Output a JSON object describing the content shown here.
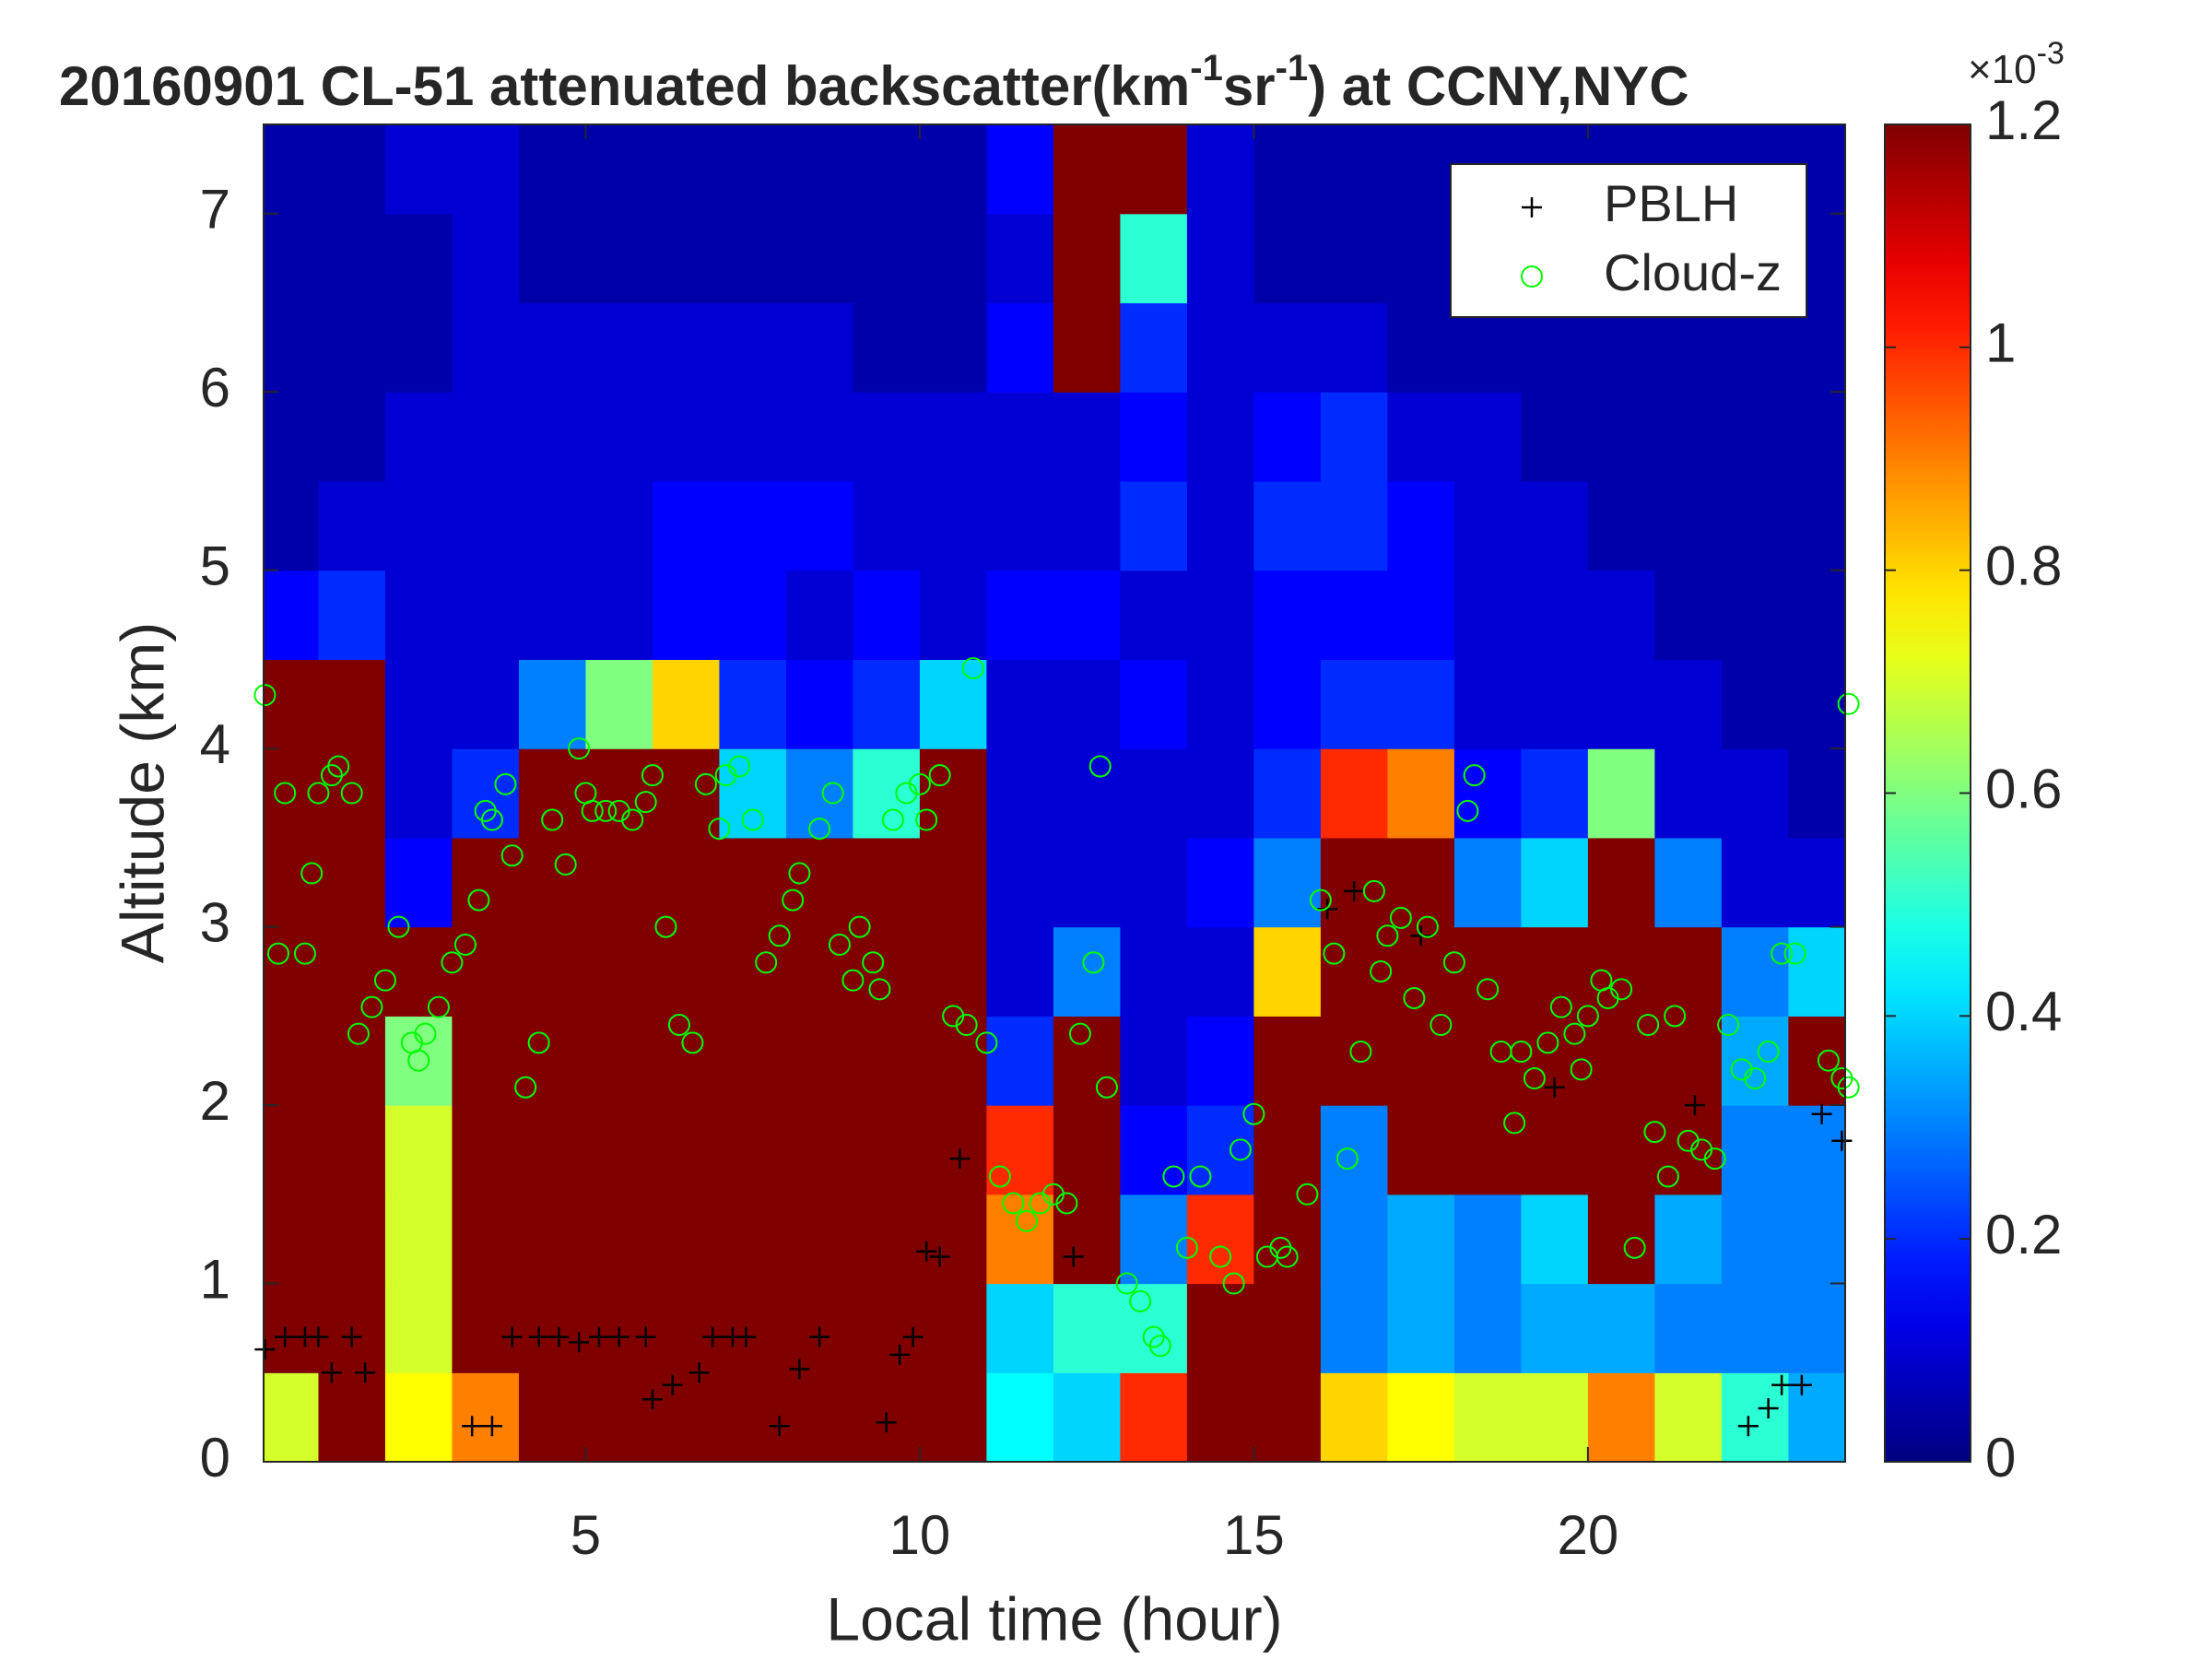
{
  "chart_data": {
    "type": "heatmap",
    "title": [
      "20160901  CL-51 attenuated backscatter(km",
      "-1",
      "sr",
      "-1",
      ") at CCNY,NYC"
    ],
    "xlabel": "Local time (hour)",
    "ylabel": "Altitude (km)",
    "xlim": [
      0.18,
      23.85
    ],
    "ylim": [
      0,
      7.5
    ],
    "xticks": [
      5,
      10,
      15,
      20
    ],
    "yticks": [
      0,
      1,
      2,
      3,
      4,
      5,
      6,
      7
    ],
    "colormap": "jet",
    "clim": [
      0,
      1.2
    ],
    "cticks": [
      0,
      0.2,
      0.4,
      0.6,
      0.8,
      1,
      1.2
    ],
    "cexponent": [
      "×10",
      "-3"
    ],
    "legend": "upper right",
    "heatmap": {
      "x": [
        0.5,
        1.5,
        2.5,
        3.5,
        4.5,
        5.5,
        6.5,
        7.5,
        8.5,
        9.5,
        10.5,
        11.5,
        12.5,
        13.5,
        14.5,
        15.5,
        16.5,
        17.5,
        18.5,
        19.5,
        20.5,
        21.5,
        22.5,
        23.5
      ],
      "y": [
        0.25,
        0.75,
        1.25,
        1.75,
        2.25,
        2.75,
        3.25,
        3.75,
        4.25,
        4.75,
        5.25,
        5.75,
        6.25,
        6.75,
        7.25
      ],
      "values": [
        [
          0.7,
          1.2,
          1.2,
          1.2,
          1.2,
          1.2,
          1.2,
          1.2,
          1.2,
          0.15,
          0.05,
          0.05,
          0.05,
          0.05,
          0.05
        ],
        [
          1.2,
          1.2,
          1.2,
          1.2,
          1.2,
          1.2,
          1.2,
          1.2,
          1.2,
          0.2,
          0.1,
          0.05,
          0.05,
          0.05,
          0.05
        ],
        [
          0.75,
          0.7,
          0.7,
          0.7,
          0.6,
          1.2,
          0.15,
          0.1,
          0.1,
          0.1,
          0.1,
          0.1,
          0.05,
          0.05,
          0.1
        ],
        [
          0.9,
          1.2,
          1.2,
          1.2,
          1.2,
          1.2,
          1.2,
          0.2,
          0.1,
          0.1,
          0.1,
          0.1,
          0.1,
          0.1,
          0.1
        ],
        [
          1.2,
          1.2,
          1.2,
          1.2,
          1.2,
          1.2,
          1.2,
          1.2,
          0.3,
          0.1,
          0.1,
          0.1,
          0.1,
          0.05,
          0.05
        ],
        [
          1.2,
          1.2,
          1.2,
          1.2,
          1.2,
          1.2,
          1.2,
          1.2,
          0.6,
          0.1,
          0.1,
          0.1,
          0.1,
          0.05,
          0.05
        ],
        [
          1.2,
          1.2,
          1.2,
          1.2,
          1.2,
          1.2,
          1.2,
          1.2,
          0.8,
          0.15,
          0.15,
          0.1,
          0.1,
          0.05,
          0.05
        ],
        [
          1.2,
          1.2,
          1.2,
          1.2,
          1.2,
          1.2,
          1.2,
          0.4,
          0.2,
          0.15,
          0.15,
          0.1,
          0.1,
          0.05,
          0.05
        ],
        [
          1.2,
          1.2,
          1.2,
          1.2,
          1.2,
          1.2,
          1.2,
          0.3,
          0.15,
          0.1,
          0.15,
          0.1,
          0.1,
          0.05,
          0.05
        ],
        [
          1.2,
          1.2,
          1.2,
          1.2,
          1.2,
          1.2,
          1.2,
          0.5,
          0.2,
          0.15,
          0.1,
          0.1,
          0.05,
          0.05,
          0.05
        ],
        [
          1.2,
          1.2,
          1.2,
          1.2,
          1.2,
          1.2,
          1.2,
          1.2,
          0.4,
          0.1,
          0.1,
          0.1,
          0.05,
          0.05,
          0.05
        ],
        [
          0.45,
          0.4,
          0.9,
          1.0,
          0.2,
          0.1,
          0.1,
          0.1,
          0.1,
          0.15,
          0.1,
          0.1,
          0.15,
          0.1,
          0.15
        ],
        [
          0.4,
          0.5,
          1.2,
          1.2,
          1.2,
          0.3,
          0.1,
          0.1,
          0.1,
          0.15,
          0.1,
          0.1,
          1.2,
          1.2,
          1.2
        ],
        [
          1.0,
          0.5,
          0.3,
          0.15,
          0.1,
          0.1,
          0.1,
          0.1,
          0.15,
          0.1,
          0.2,
          0.15,
          0.2,
          0.5,
          1.2
        ],
        [
          1.2,
          1.2,
          1.0,
          0.2,
          0.15,
          0.1,
          0.15,
          0.1,
          0.1,
          0.1,
          0.1,
          0.1,
          0.1,
          0.1,
          0.1
        ],
        [
          1.2,
          1.2,
          1.2,
          1.2,
          1.2,
          0.8,
          0.3,
          0.2,
          0.15,
          0.15,
          0.2,
          0.15,
          0.1,
          0.05,
          0.05
        ],
        [
          0.8,
          0.3,
          0.3,
          0.3,
          1.2,
          1.2,
          1.2,
          1.0,
          0.2,
          0.15,
          0.2,
          0.2,
          0.1,
          0.05,
          0.05
        ],
        [
          0.75,
          0.35,
          0.35,
          1.2,
          1.2,
          1.2,
          1.2,
          0.9,
          0.2,
          0.15,
          0.15,
          0.1,
          0.05,
          0.05,
          0.05
        ],
        [
          0.7,
          0.3,
          0.3,
          1.2,
          1.2,
          1.2,
          0.3,
          0.15,
          0.1,
          0.1,
          0.1,
          0.1,
          0.05,
          0.05,
          0.05
        ],
        [
          0.7,
          0.35,
          0.4,
          1.2,
          1.2,
          1.2,
          0.4,
          0.2,
          0.1,
          0.1,
          0.1,
          0.05,
          0.05,
          0.05,
          0.05
        ],
        [
          0.9,
          0.35,
          1.2,
          1.2,
          1.2,
          1.2,
          1.2,
          0.6,
          0.1,
          0.1,
          0.05,
          0.05,
          0.05,
          0.05,
          0.05
        ],
        [
          0.7,
          0.3,
          0.35,
          1.2,
          1.2,
          1.2,
          0.3,
          0.1,
          0.1,
          0.05,
          0.05,
          0.05,
          0.05,
          0.05,
          0.05
        ],
        [
          0.5,
          0.3,
          0.3,
          0.3,
          0.35,
          0.3,
          0.1,
          0.1,
          0.05,
          0.05,
          0.05,
          0.05,
          0.05,
          0.05,
          0.05
        ],
        [
          0.35,
          0.3,
          0.3,
          0.3,
          1.2,
          0.4,
          0.1,
          0.05,
          0.05,
          0.05,
          0.05,
          0.05,
          0.05,
          0.05,
          0.05
        ]
      ]
    },
    "series": [
      {
        "name": "PBLH",
        "color": "#000000",
        "marker": "+",
        "x": [
          0.2,
          0.5,
          0.8,
          1.0,
          1.2,
          1.5,
          1.7,
          3.3,
          3.6,
          3.9,
          4.3,
          4.6,
          4.9,
          5.2,
          5.5,
          5.9,
          6.0,
          6.3,
          6.7,
          6.9,
          7.2,
          7.4,
          7.9,
          8.2,
          8.5,
          9.5,
          9.7,
          9.9,
          10.1,
          10.3,
          10.6,
          12.3,
          16.1,
          16.5,
          17.5,
          19.5,
          21.6,
          22.4,
          22.7,
          22.9,
          23.2,
          23.5,
          23.8
        ],
        "values": [
          0.63,
          0.7,
          0.7,
          0.7,
          0.5,
          0.7,
          0.5,
          0.2,
          0.2,
          0.7,
          0.7,
          0.7,
          0.67,
          0.7,
          0.7,
          0.7,
          0.35,
          0.43,
          0.5,
          0.7,
          0.7,
          0.7,
          0.2,
          0.52,
          0.7,
          0.22,
          0.6,
          0.7,
          1.18,
          1.15,
          1.7,
          1.15,
          3.1,
          3.2,
          2.95,
          2.1,
          2.0,
          0.2,
          0.3,
          0.43,
          0.43,
          1.95,
          1.8
        ]
      },
      {
        "name": "Cloud-z",
        "color": "#00ff00",
        "marker": "o",
        "x": [
          0.2,
          0.4,
          0.5,
          0.8,
          0.9,
          1.0,
          1.2,
          1.3,
          1.5,
          1.6,
          1.8,
          2.0,
          2.2,
          2.4,
          2.5,
          2.6,
          2.8,
          3.0,
          3.2,
          3.4,
          3.5,
          3.6,
          3.8,
          3.9,
          4.1,
          4.3,
          4.5,
          4.7,
          4.9,
          5.0,
          5.1,
          5.3,
          5.5,
          5.7,
          5.9,
          6.0,
          6.2,
          6.4,
          6.6,
          6.8,
          7.0,
          7.1,
          7.3,
          7.5,
          7.7,
          7.9,
          8.1,
          8.2,
          8.5,
          8.7,
          8.8,
          9.0,
          9.1,
          9.3,
          9.4,
          9.6,
          9.8,
          10.0,
          10.1,
          10.3,
          10.5,
          10.7,
          10.8,
          11.0,
          11.2,
          11.4,
          11.6,
          11.8,
          12.0,
          12.2,
          12.4,
          12.6,
          12.7,
          12.8,
          13.1,
          13.3,
          13.5,
          13.6,
          13.8,
          14.0,
          14.2,
          14.5,
          14.7,
          14.8,
          15.0,
          15.2,
          15.4,
          15.5,
          15.8,
          16.0,
          16.2,
          16.4,
          16.6,
          16.8,
          16.9,
          17.0,
          17.2,
          17.4,
          17.6,
          17.8,
          18.0,
          18.2,
          18.3,
          18.5,
          18.7,
          18.9,
          19.0,
          19.2,
          19.4,
          19.6,
          19.8,
          19.9,
          20.0,
          20.2,
          20.3,
          20.5,
          20.7,
          20.9,
          21.0,
          21.2,
          21.3,
          21.5,
          21.7,
          21.9,
          22.1,
          22.3,
          22.5,
          22.7,
          22.9,
          23.1,
          23.6,
          23.8,
          23.9,
          23.9
        ],
        "values": [
          4.3,
          2.85,
          3.75,
          2.85,
          3.3,
          3.75,
          3.85,
          3.9,
          3.75,
          2.4,
          2.55,
          2.7,
          3.0,
          2.35,
          2.25,
          2.4,
          2.55,
          2.8,
          2.9,
          3.15,
          3.65,
          3.6,
          3.8,
          3.4,
          2.1,
          2.35,
          3.6,
          3.35,
          4.0,
          3.75,
          3.65,
          3.65,
          3.65,
          3.6,
          3.7,
          3.85,
          3.0,
          2.45,
          2.35,
          3.8,
          3.55,
          3.85,
          3.9,
          3.6,
          2.8,
          2.95,
          3.15,
          3.3,
          3.55,
          3.75,
          2.9,
          2.7,
          3.0,
          2.8,
          2.65,
          3.6,
          3.75,
          3.8,
          3.6,
          3.85,
          2.5,
          2.45,
          4.45,
          2.35,
          1.6,
          1.45,
          1.35,
          1.45,
          1.5,
          1.45,
          2.4,
          2.8,
          3.9,
          2.1,
          1.0,
          0.9,
          0.7,
          0.65,
          1.6,
          1.2,
          1.6,
          1.15,
          1.0,
          1.75,
          1.95,
          1.15,
          1.2,
          1.15,
          1.5,
          3.15,
          2.85,
          1.7,
          2.3,
          3.2,
          2.75,
          2.95,
          3.05,
          2.6,
          3.0,
          2.45,
          2.8,
          3.65,
          3.85,
          2.65,
          2.3,
          1.9,
          2.3,
          2.15,
          2.35,
          2.55,
          2.4,
          2.2,
          2.5,
          2.7,
          2.6,
          2.65,
          1.2,
          2.45,
          1.85,
          1.6,
          2.5,
          1.8,
          1.75,
          1.7,
          2.45,
          2.2,
          2.15,
          2.3,
          2.85,
          2.85,
          2.25,
          2.15,
          2.1,
          4.25
        ]
      }
    ]
  }
}
